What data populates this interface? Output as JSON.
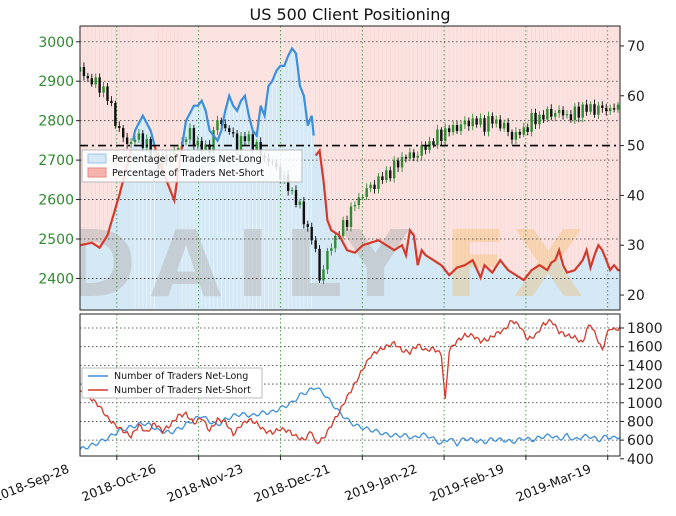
{
  "chart_data": [
    {
      "type": "candlestick",
      "title": "US 500 Client Positioning",
      "watermark": "DailyFX",
      "x_dates": [
        "2018-Sep-28",
        "2018-Oct-26",
        "2018-Nov-23",
        "2018-Dec-21",
        "2019-Jan-22",
        "2019-Feb-19",
        "2019-Mar-19"
      ],
      "left_axis": {
        "ticks": [
          2400,
          2500,
          2600,
          2700,
          2800,
          2900,
          3000
        ],
        "ylim": [
          2320,
          3040
        ],
        "color": "#2e8b2e"
      },
      "right_axis": {
        "ticks": [
          20,
          30,
          40,
          50,
          60,
          70
        ],
        "ylim": [
          17,
          74
        ]
      },
      "reference_line": {
        "value": 50,
        "axis": "right",
        "style": "dash-dot"
      },
      "legend": {
        "placement": "center-left",
        "entries": [
          "Percentage of Traders Net-Long",
          "Percentage of Traders Net-Short"
        ]
      },
      "colors": {
        "net_long_line": "#3d8fd9",
        "net_long_fill": "#d4e8f6",
        "net_short_line": "#d33a2c",
        "net_short_fill": "#fbe3e1",
        "candle_up": "#2e8b2e",
        "candle_down": "#111111"
      },
      "percent_net_long_key": [
        [
          0,
          30
        ],
        [
          6,
          30.5
        ],
        [
          10,
          29.5
        ],
        [
          14,
          32
        ],
        [
          20,
          40
        ],
        [
          26,
          49
        ],
        [
          28,
          53
        ],
        [
          32,
          56
        ],
        [
          36,
          53
        ],
        [
          40,
          47
        ],
        [
          44,
          43
        ],
        [
          48,
          39
        ],
        [
          52,
          50
        ],
        [
          54,
          55
        ],
        [
          58,
          58
        ],
        [
          60,
          58
        ],
        [
          62,
          59
        ],
        [
          64,
          57
        ],
        [
          66,
          53
        ],
        [
          70,
          51
        ],
        [
          72,
          53
        ],
        [
          74,
          57
        ],
        [
          76,
          60
        ],
        [
          78,
          58
        ],
        [
          80,
          57
        ],
        [
          82,
          59
        ],
        [
          84,
          60
        ],
        [
          86,
          56
        ],
        [
          88,
          53
        ],
        [
          90,
          52
        ],
        [
          92,
          58
        ],
        [
          94,
          56
        ],
        [
          96,
          62
        ],
        [
          98,
          63
        ],
        [
          100,
          65
        ],
        [
          102,
          66
        ],
        [
          104,
          66
        ],
        [
          106,
          68
        ],
        [
          108,
          69.5
        ],
        [
          110,
          68.5
        ],
        [
          112,
          62
        ],
        [
          114,
          60
        ],
        [
          116,
          54
        ],
        [
          118,
          56
        ],
        [
          120,
          48
        ],
        [
          122,
          49
        ],
        [
          124,
          43
        ],
        [
          126,
          35
        ],
        [
          128,
          33
        ],
        [
          132,
          32
        ],
        [
          136,
          29
        ],
        [
          140,
          28.5
        ],
        [
          144,
          30
        ],
        [
          148,
          30.5
        ],
        [
          152,
          31
        ],
        [
          156,
          30
        ],
        [
          160,
          29
        ],
        [
          164,
          30
        ],
        [
          166,
          28
        ],
        [
          168,
          33
        ],
        [
          170,
          32
        ],
        [
          172,
          26
        ],
        [
          174,
          29
        ],
        [
          176,
          28
        ],
        [
          180,
          27
        ],
        [
          184,
          26
        ],
        [
          188,
          24
        ],
        [
          192,
          25.5
        ],
        [
          196,
          26
        ],
        [
          200,
          27
        ],
        [
          204,
          23.5
        ],
        [
          206,
          26
        ],
        [
          210,
          24.5
        ],
        [
          214,
          27
        ],
        [
          218,
          25
        ],
        [
          222,
          24
        ],
        [
          226,
          23
        ],
        [
          230,
          25
        ],
        [
          234,
          26
        ],
        [
          238,
          25
        ],
        [
          240,
          26.5
        ],
        [
          242,
          27
        ],
        [
          244,
          29
        ],
        [
          246,
          26
        ],
        [
          248,
          24.5
        ],
        [
          252,
          25
        ],
        [
          256,
          27
        ],
        [
          258,
          29
        ],
        [
          260,
          25.5
        ],
        [
          262,
          28
        ],
        [
          264,
          30
        ],
        [
          266,
          29
        ],
        [
          268,
          27
        ],
        [
          270,
          25
        ],
        [
          272,
          26
        ],
        [
          274,
          25
        ]
      ],
      "price_close_key": [
        [
          0,
          2930
        ],
        [
          5,
          2900
        ],
        [
          10,
          2890
        ],
        [
          15,
          2850
        ],
        [
          20,
          2770
        ],
        [
          25,
          2740
        ],
        [
          30,
          2760
        ],
        [
          35,
          2730
        ],
        [
          40,
          2690
        ],
        [
          45,
          2710
        ],
        [
          50,
          2730
        ],
        [
          55,
          2770
        ],
        [
          60,
          2740
        ],
        [
          65,
          2720
        ],
        [
          70,
          2800
        ],
        [
          75,
          2780
        ],
        [
          80,
          2740
        ],
        [
          85,
          2760
        ],
        [
          90,
          2730
        ],
        [
          95,
          2700
        ],
        [
          100,
          2680
        ],
        [
          105,
          2640
        ],
        [
          110,
          2600
        ],
        [
          115,
          2540
        ],
        [
          120,
          2470
        ],
        [
          122,
          2400
        ],
        [
          125,
          2440
        ],
        [
          128,
          2490
        ],
        [
          130,
          2500
        ],
        [
          135,
          2540
        ],
        [
          140,
          2590
        ],
        [
          145,
          2620
        ],
        [
          150,
          2640
        ],
        [
          155,
          2660
        ],
        [
          160,
          2680
        ],
        [
          165,
          2710
        ],
        [
          170,
          2710
        ],
        [
          175,
          2730
        ],
        [
          180,
          2750
        ],
        [
          185,
          2770
        ],
        [
          190,
          2780
        ],
        [
          195,
          2790
        ],
        [
          200,
          2800
        ],
        [
          205,
          2790
        ],
        [
          210,
          2800
        ],
        [
          215,
          2790
        ],
        [
          220,
          2760
        ],
        [
          225,
          2770
        ],
        [
          230,
          2800
        ],
        [
          235,
          2810
        ],
        [
          240,
          2820
        ],
        [
          245,
          2820
        ],
        [
          250,
          2810
        ],
        [
          255,
          2830
        ]
      ],
      "date_index_range": [
        0,
        275
      ]
    },
    {
      "type": "line",
      "right_axis": {
        "ticks": [
          400,
          600,
          800,
          1000,
          1200,
          1400,
          1600,
          1800
        ],
        "ylim": [
          430,
          1950
        ]
      },
      "legend": {
        "placement": "center-left",
        "entries": [
          "Number of Traders Net-Long",
          "Number of Traders Net-Short"
        ]
      },
      "series": [
        {
          "name": "Number of Traders Net-Long",
          "color": "#3d8fd9",
          "key": [
            [
              0,
              500
            ],
            [
              8,
              560
            ],
            [
              14,
              620
            ],
            [
              20,
              700
            ],
            [
              26,
              740
            ],
            [
              32,
              780
            ],
            [
              36,
              760
            ],
            [
              40,
              700
            ],
            [
              46,
              680
            ],
            [
              52,
              740
            ],
            [
              58,
              820
            ],
            [
              62,
              860
            ],
            [
              66,
              800
            ],
            [
              70,
              760
            ],
            [
              74,
              820
            ],
            [
              78,
              860
            ],
            [
              82,
              880
            ],
            [
              88,
              860
            ],
            [
              92,
              890
            ],
            [
              98,
              900
            ],
            [
              104,
              960
            ],
            [
              108,
              1000
            ],
            [
              112,
              1080
            ],
            [
              116,
              1120
            ],
            [
              120,
              1170
            ],
            [
              124,
              1100
            ],
            [
              128,
              1000
            ],
            [
              132,
              900
            ],
            [
              136,
              820
            ],
            [
              140,
              760
            ],
            [
              146,
              720
            ],
            [
              150,
              700
            ],
            [
              156,
              660
            ],
            [
              160,
              650
            ],
            [
              166,
              650
            ],
            [
              170,
              620
            ],
            [
              174,
              660
            ],
            [
              178,
              640
            ],
            [
              184,
              560
            ],
            [
              188,
              620
            ],
            [
              192,
              560
            ],
            [
              196,
              620
            ],
            [
              200,
              600
            ],
            [
              206,
              580
            ],
            [
              210,
              610
            ],
            [
              216,
              600
            ],
            [
              220,
              580
            ],
            [
              226,
              620
            ],
            [
              230,
              600
            ],
            [
              236,
              640
            ],
            [
              240,
              650
            ],
            [
              244,
              610
            ],
            [
              248,
              650
            ],
            [
              252,
              600
            ],
            [
              256,
              640
            ],
            [
              260,
              640
            ],
            [
              264,
              600
            ],
            [
              268,
              640
            ],
            [
              272,
              620
            ],
            [
              275,
              640
            ]
          ]
        },
        {
          "name": "Number of Traders Net-Short",
          "color": "#d33a2c",
          "key": [
            [
              0,
              1120
            ],
            [
              6,
              1040
            ],
            [
              10,
              960
            ],
            [
              14,
              840
            ],
            [
              18,
              760
            ],
            [
              22,
              700
            ],
            [
              26,
              640
            ],
            [
              30,
              760
            ],
            [
              34,
              680
            ],
            [
              38,
              780
            ],
            [
              42,
              700
            ],
            [
              46,
              760
            ],
            [
              50,
              860
            ],
            [
              54,
              880
            ],
            [
              58,
              780
            ],
            [
              62,
              840
            ],
            [
              66,
              700
            ],
            [
              70,
              820
            ],
            [
              74,
              800
            ],
            [
              78,
              660
            ],
            [
              82,
              760
            ],
            [
              86,
              820
            ],
            [
              90,
              780
            ],
            [
              94,
              700
            ],
            [
              98,
              680
            ],
            [
              102,
              720
            ],
            [
              106,
              700
            ],
            [
              110,
              640
            ],
            [
              114,
              600
            ],
            [
              118,
              700
            ],
            [
              120,
              560
            ],
            [
              124,
              620
            ],
            [
              128,
              760
            ],
            [
              132,
              900
            ],
            [
              136,
              1060
            ],
            [
              140,
              1200
            ],
            [
              144,
              1360
            ],
            [
              148,
              1500
            ],
            [
              152,
              1560
            ],
            [
              156,
              1600
            ],
            [
              160,
              1640
            ],
            [
              164,
              1560
            ],
            [
              168,
              1540
            ],
            [
              172,
              1620
            ],
            [
              176,
              1560
            ],
            [
              180,
              1580
            ],
            [
              184,
              1520
            ],
            [
              186,
              1020
            ],
            [
              188,
              1560
            ],
            [
              192,
              1660
            ],
            [
              196,
              1720
            ],
            [
              200,
              1720
            ],
            [
              204,
              1660
            ],
            [
              208,
              1680
            ],
            [
              212,
              1740
            ],
            [
              216,
              1780
            ],
            [
              220,
              1880
            ],
            [
              224,
              1820
            ],
            [
              228,
              1680
            ],
            [
              232,
              1720
            ],
            [
              236,
              1840
            ],
            [
              240,
              1880
            ],
            [
              244,
              1760
            ],
            [
              248,
              1720
            ],
            [
              252,
              1700
            ],
            [
              256,
              1640
            ],
            [
              258,
              1780
            ],
            [
              260,
              1840
            ],
            [
              264,
              1660
            ],
            [
              266,
              1560
            ],
            [
              268,
              1720
            ],
            [
              270,
              1800
            ],
            [
              272,
              1780
            ],
            [
              275,
              1800
            ]
          ]
        }
      ]
    }
  ]
}
